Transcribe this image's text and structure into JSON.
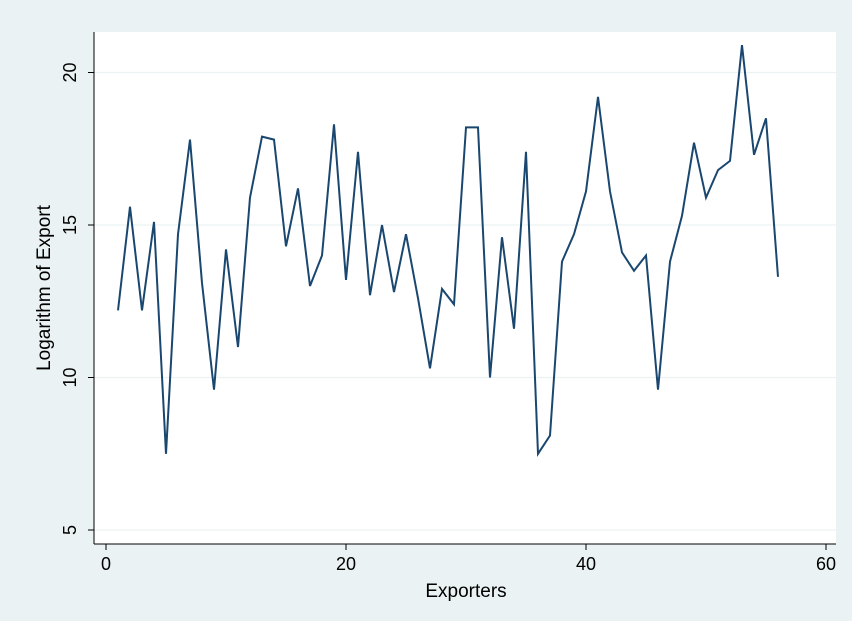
{
  "chart_data": {
    "type": "line",
    "title": "",
    "xlabel": "Exporters",
    "ylabel": "Logarithm of Export",
    "xlim": [
      0,
      60
    ],
    "ylim": [
      5,
      21
    ],
    "xticks": [
      0,
      20,
      40,
      60
    ],
    "xtick_labels": [
      "0",
      "20",
      "40",
      "60"
    ],
    "yticks": [
      5,
      10,
      15,
      20
    ],
    "ytick_labels": [
      "5",
      "10",
      "15",
      "20"
    ],
    "grid": "horizontal",
    "legend": "none",
    "line_color": "#1a476f",
    "series": [
      {
        "x": [
          1,
          2,
          3,
          4,
          5,
          6,
          7,
          8,
          9,
          10,
          11,
          12,
          13,
          14,
          15,
          16,
          17,
          18,
          19,
          20,
          21,
          22,
          23,
          24,
          25,
          26,
          27,
          28,
          29,
          30,
          31,
          32,
          33,
          34,
          35,
          36,
          37,
          38,
          39,
          40,
          41,
          42,
          43,
          44,
          45,
          46,
          47,
          48,
          49,
          50,
          51,
          52,
          53,
          54,
          55,
          56
        ],
        "values": [
          12.2,
          15.6,
          12.2,
          15.1,
          7.5,
          14.7,
          17.8,
          13.1,
          9.6,
          14.2,
          11.0,
          15.9,
          17.9,
          17.8,
          14.3,
          16.2,
          13.0,
          14.0,
          18.3,
          13.2,
          17.4,
          12.7,
          15.0,
          12.8,
          14.7,
          12.6,
          10.3,
          12.9,
          12.4,
          18.2,
          18.2,
          10.0,
          14.6,
          11.6,
          17.4,
          7.5,
          8.1,
          13.8,
          14.7,
          16.1,
          19.2,
          16.1,
          14.1,
          13.5,
          14.0,
          9.6,
          13.8,
          15.3,
          17.7,
          15.9,
          16.8,
          17.1,
          20.9,
          17.3,
          18.5,
          13.3
        ]
      }
    ]
  }
}
